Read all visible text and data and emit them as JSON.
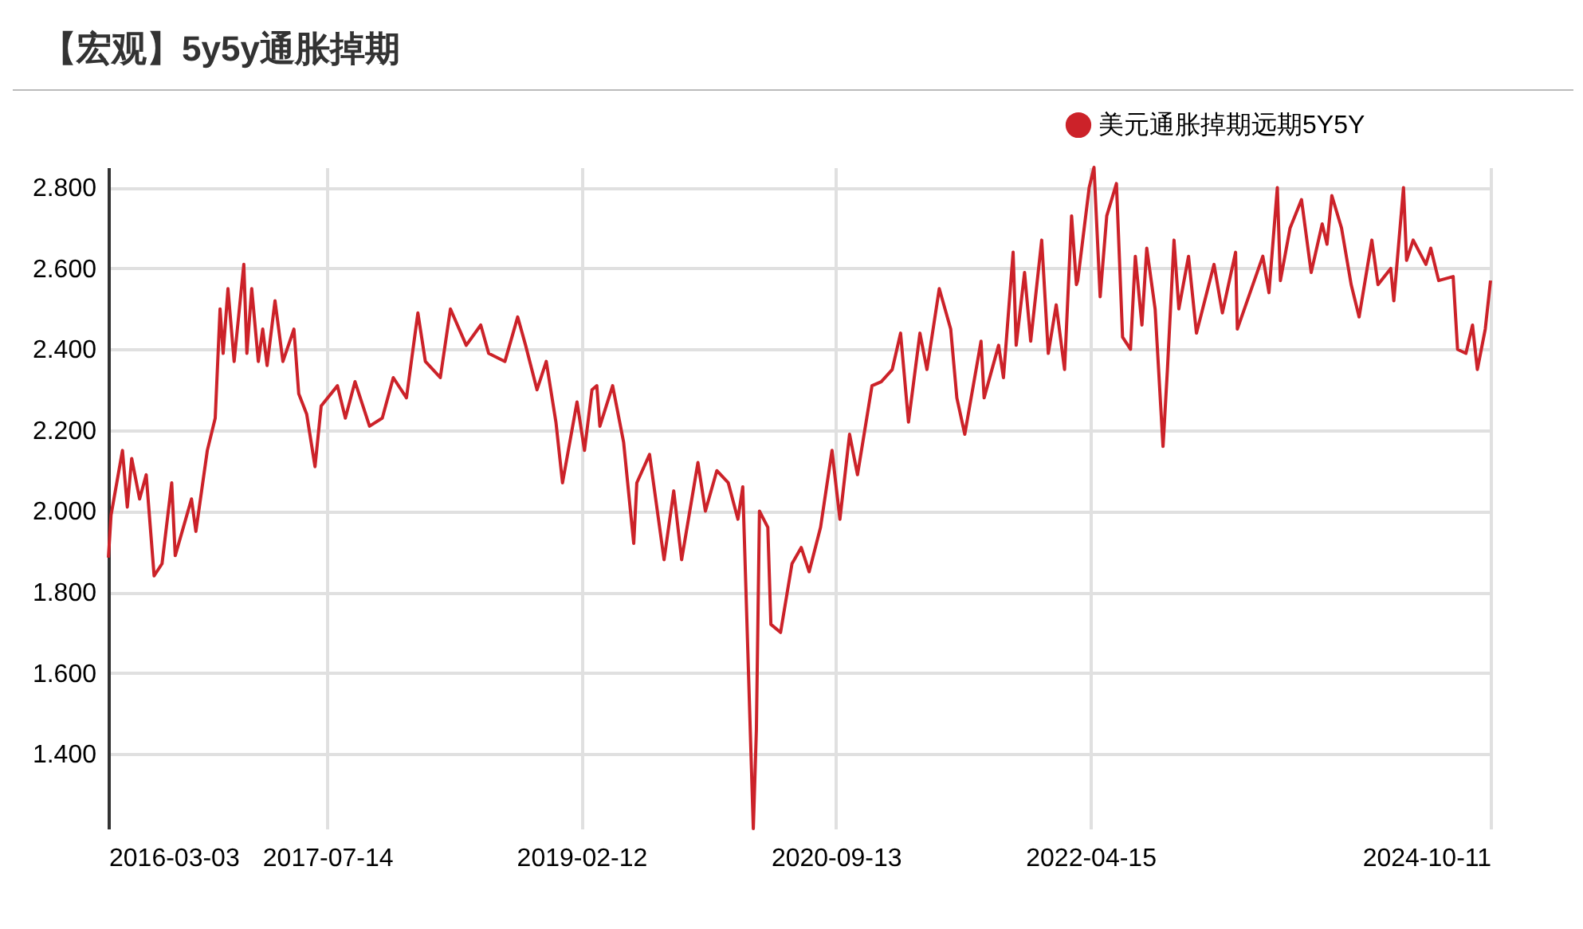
{
  "chart_data": {
    "type": "line",
    "title": "【宏观】5y5y通胀掉期",
    "xlim": [
      "2016-03-03",
      "2024-10-11"
    ],
    "xticks": [
      "2016-03-03",
      "2017-07-14",
      "2019-02-12",
      "2020-09-13",
      "2022-04-15",
      "2024-10-11"
    ],
    "ylim": [
      1.215,
      2.85
    ],
    "yticks": [
      {
        "value": 1.4,
        "label": "1.400"
      },
      {
        "value": 1.6,
        "label": "1.600"
      },
      {
        "value": 1.8,
        "label": "1.800"
      },
      {
        "value": 2.0,
        "label": "2.000"
      },
      {
        "value": 2.2,
        "label": "2.200"
      },
      {
        "value": 2.4,
        "label": "2.400"
      },
      {
        "value": 2.6,
        "label": "2.600"
      },
      {
        "value": 2.8,
        "label": "2.800"
      }
    ],
    "grid": true,
    "legend": "top right",
    "marker": "none",
    "line_style": "solid",
    "series": [
      {
        "name": "美元通胀掉期远期5Y5Y",
        "color": "#cc2229",
        "x": [
          "2016-03-03",
          "2016-03-09",
          "2016-04-04",
          "2016-04-15",
          "2016-04-25",
          "2016-05-13",
          "2016-05-28",
          "2016-06-15",
          "2016-07-03",
          "2016-07-25",
          "2016-08-02",
          "2016-09-08",
          "2016-09-18",
          "2016-10-14",
          "2016-11-01",
          "2016-11-12",
          "2016-11-19",
          "2016-11-30",
          "2016-12-14",
          "2017-01-05",
          "2017-01-12",
          "2017-01-23",
          "2017-02-07",
          "2017-02-17",
          "2017-02-27",
          "2017-03-17",
          "2017-04-04",
          "2017-04-29",
          "2017-05-10",
          "2017-05-28",
          "2017-06-16",
          "2017-06-30",
          "2017-08-06",
          "2017-08-24",
          "2017-09-15",
          "2017-10-18",
          "2017-11-16",
          "2017-12-11",
          "2018-01-10",
          "2018-02-05",
          "2018-02-22",
          "2018-03-28",
          "2018-04-20",
          "2018-05-26",
          "2018-06-28",
          "2018-07-16",
          "2018-08-22",
          "2018-09-20",
          "2018-10-08",
          "2018-11-03",
          "2018-11-24",
          "2018-12-16",
          "2018-12-31",
          "2019-02-02",
          "2019-02-19",
          "2019-03-08",
          "2019-03-19",
          "2019-03-26",
          "2019-04-24",
          "2019-05-19",
          "2019-06-11",
          "2019-06-18",
          "2019-07-17",
          "2019-08-19",
          "2019-09-10",
          "2019-09-28",
          "2019-11-04",
          "2019-11-21",
          "2019-12-17",
          "2020-01-12",
          "2020-02-03",
          "2020-02-14",
          "2020-03-09",
          "2020-03-16",
          "2020-03-23",
          "2020-04-11",
          "2020-04-18",
          "2020-05-10",
          "2020-06-05",
          "2020-06-26",
          "2020-07-14",
          "2020-08-09",
          "2020-09-04",
          "2020-09-22",
          "2020-10-14",
          "2020-11-01",
          "2020-12-04",
          "2020-12-25",
          "2021-01-19",
          "2021-02-07",
          "2021-02-25",
          "2021-03-23",
          "2021-04-08",
          "2021-05-06",
          "2021-06-01",
          "2021-06-15",
          "2021-07-03",
          "2021-08-09",
          "2021-08-16",
          "2021-09-18",
          "2021-09-29",
          "2021-10-21",
          "2021-10-28",
          "2021-11-16",
          "2021-11-30",
          "2021-12-25",
          "2022-01-09",
          "2022-01-27",
          "2022-02-15",
          "2022-03-03",
          "2022-03-14",
          "2022-03-17",
          "2022-04-12",
          "2022-04-23",
          "2022-05-07",
          "2022-05-22",
          "2022-06-13",
          "2022-06-27",
          "2022-07-15",
          "2022-07-26",
          "2022-08-10",
          "2022-08-21",
          "2022-09-09",
          "2022-09-27",
          "2022-10-07",
          "2022-10-22",
          "2022-11-02",
          "2022-11-24",
          "2022-12-12",
          "2023-01-21",
          "2023-02-09",
          "2023-03-11",
          "2023-03-15",
          "2023-05-12",
          "2023-05-26",
          "2023-06-14",
          "2023-06-21",
          "2023-07-13",
          "2023-08-08",
          "2023-08-30",
          "2023-09-24",
          "2023-10-05",
          "2023-10-16",
          "2023-11-07",
          "2023-11-29",
          "2023-12-17",
          "2024-01-15",
          "2024-01-29",
          "2024-02-27",
          "2024-03-05",
          "2024-03-27",
          "2024-04-03",
          "2024-04-18",
          "2024-05-17",
          "2024-05-28",
          "2024-06-15",
          "2024-07-18",
          "2024-07-28",
          "2024-08-16",
          "2024-08-31",
          "2024-09-11",
          "2024-09-29",
          "2024-10-11"
        ],
        "values": [
          1.885,
          1.99,
          2.15,
          2.01,
          2.13,
          2.03,
          2.09,
          1.84,
          1.87,
          2.07,
          1.89,
          2.03,
          1.95,
          2.15,
          2.23,
          2.5,
          2.39,
          2.55,
          2.37,
          2.61,
          2.39,
          2.55,
          2.37,
          2.45,
          2.36,
          2.52,
          2.37,
          2.45,
          2.29,
          2.24,
          2.11,
          2.26,
          2.31,
          2.23,
          2.32,
          2.21,
          2.23,
          2.33,
          2.28,
          2.49,
          2.37,
          2.33,
          2.5,
          2.41,
          2.46,
          2.39,
          2.37,
          2.48,
          2.41,
          2.3,
          2.37,
          2.22,
          2.07,
          2.27,
          2.15,
          2.3,
          2.31,
          2.21,
          2.31,
          2.17,
          1.92,
          2.07,
          2.14,
          1.88,
          2.05,
          1.88,
          2.12,
          2.0,
          2.1,
          2.07,
          1.98,
          2.06,
          1.215,
          1.46,
          2.0,
          1.96,
          1.72,
          1.7,
          1.87,
          1.91,
          1.85,
          1.96,
          2.15,
          1.98,
          2.19,
          2.09,
          2.31,
          2.32,
          2.35,
          2.44,
          2.22,
          2.44,
          2.35,
          2.55,
          2.45,
          2.28,
          2.19,
          2.42,
          2.28,
          2.41,
          2.33,
          2.64,
          2.41,
          2.59,
          2.42,
          2.67,
          2.39,
          2.51,
          2.35,
          2.73,
          2.56,
          2.57,
          2.8,
          2.85,
          2.53,
          2.73,
          2.81,
          2.43,
          2.4,
          2.63,
          2.46,
          2.65,
          2.5,
          2.16,
          2.35,
          2.67,
          2.5,
          2.63,
          2.44,
          2.61,
          2.49,
          2.64,
          2.45,
          2.63,
          2.54,
          2.8,
          2.57,
          2.7,
          2.77,
          2.59,
          2.71,
          2.66,
          2.78,
          2.7,
          2.56,
          2.48,
          2.67,
          2.56,
          2.6,
          2.52,
          2.8,
          2.62,
          2.67,
          2.61,
          2.65,
          2.57,
          2.58,
          2.4,
          2.39,
          2.46,
          2.35,
          2.45,
          2.57
        ]
      }
    ]
  }
}
